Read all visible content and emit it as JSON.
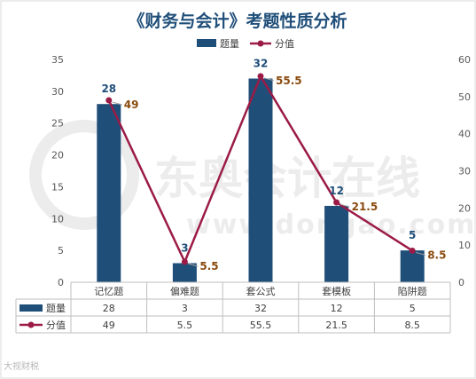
{
  "chart_data": {
    "type": "bar+line",
    "title": "《财务与会计》考题性质分析",
    "categories": [
      "记忆题",
      "偏难题",
      "套公式",
      "套模板",
      "陷阱题"
    ],
    "series": [
      {
        "name": "题量",
        "type": "bar",
        "axis": "left",
        "values": [
          28,
          3,
          32,
          12,
          5
        ]
      },
      {
        "name": "分值",
        "type": "line",
        "axis": "right",
        "values": [
          49,
          5.5,
          55.5,
          21.5,
          8.5
        ]
      }
    ],
    "ylim_left": [
      0,
      35
    ],
    "ylim_right": [
      0,
      60
    ],
    "yticks_left": [
      0,
      5,
      10,
      15,
      20,
      25,
      30,
      35
    ],
    "yticks_right": [
      0,
      10,
      20,
      30,
      40,
      50,
      60
    ],
    "legend_position": "top",
    "data_table": true,
    "grid": false,
    "colors": {
      "bar": "#1f4e79",
      "line": "#9b1b46",
      "title": "#1f4e79",
      "bar_label": "#1f4e79",
      "line_label": "#8a4a0e"
    }
  },
  "watermark": {
    "brand": "东奥会计在线",
    "domain": "www.dongao.com"
  },
  "corner_mark": "大视财税"
}
